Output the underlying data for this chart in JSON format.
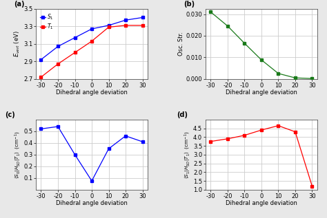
{
  "x": [
    -30,
    -20,
    -10,
    0,
    10,
    20,
    30
  ],
  "panel_a": {
    "S1": [
      2.92,
      3.07,
      3.17,
      3.27,
      3.31,
      3.37,
      3.4
    ],
    "T1": [
      2.72,
      2.87,
      3.0,
      3.13,
      3.29,
      3.31,
      3.31
    ],
    "ylabel": "$E_{vert}$ (eV)",
    "ylim": [
      2.7,
      3.5
    ],
    "yticks": [
      2.7,
      2.9,
      3.1,
      3.3,
      3.5
    ],
    "S1_color": "blue",
    "T1_color": "red",
    "label": "(a)"
  },
  "panel_b": {
    "osc": [
      0.031,
      0.0245,
      0.0165,
      0.0088,
      0.0025,
      0.00045,
      0.00015
    ],
    "ylabel": "Osc. Str.",
    "ylim": [
      0.0,
      0.0325
    ],
    "yticks": [
      0.0,
      0.01,
      0.02,
      0.03
    ],
    "color": "#1a7a1a",
    "label": "(b)"
  },
  "panel_c": {
    "soc": [
      0.52,
      0.54,
      0.3,
      0.075,
      0.35,
      0.46,
      0.41
    ],
    "ylabel": "$\\langle S_0|H_{SO}|T_1\\rangle$  $(\\mathrm{cm}^{-1})$",
    "ylim": [
      0.0,
      0.6
    ],
    "yticks": [
      0.1,
      0.2,
      0.3,
      0.4,
      0.5
    ],
    "color": "blue",
    "label": "(c)"
  },
  "panel_d": {
    "tdm": [
      3.75,
      3.9,
      4.1,
      4.4,
      4.65,
      4.3,
      1.2
    ],
    "ylabel": "$\\langle S_1|H_{SO}|T_1\\rangle$  $(\\mathrm{cm}^{-1})$",
    "ylim": [
      1.0,
      5.0
    ],
    "yticks": [
      1.0,
      1.5,
      2.0,
      2.5,
      3.0,
      3.5,
      4.0,
      4.5
    ],
    "color": "red",
    "label": "(d)"
  },
  "xlabel": "Dihedral angle deviation",
  "xticks": [
    -30,
    -20,
    -10,
    0,
    10,
    20,
    30
  ],
  "bg_color": "#ffffff",
  "grid_color": "#cccccc",
  "fig_bg": "#e8e8e8"
}
